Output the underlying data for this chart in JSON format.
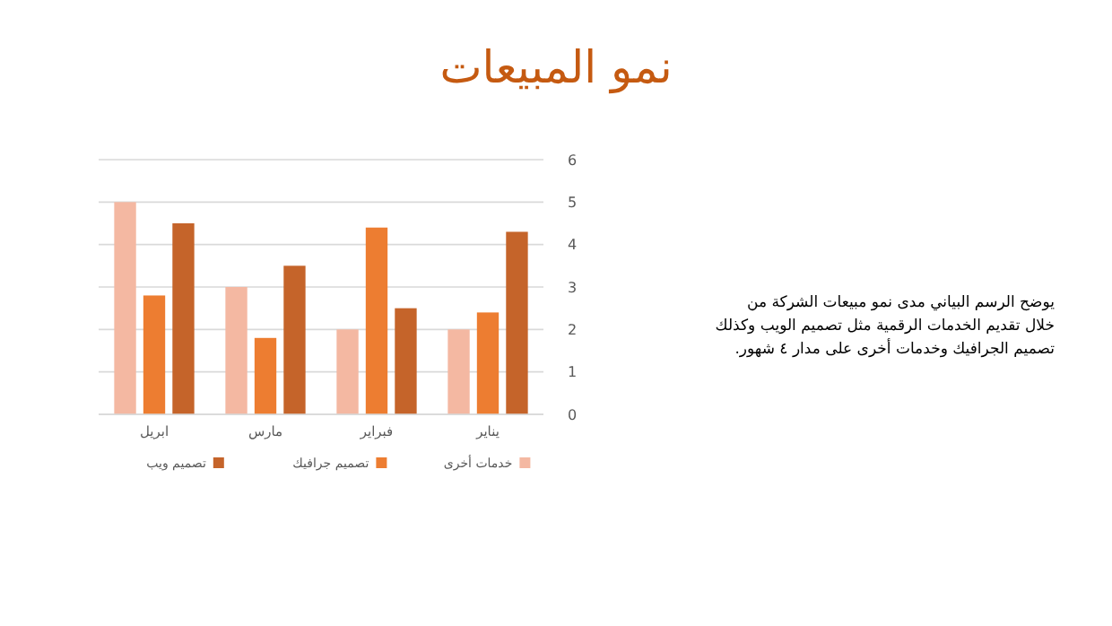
{
  "chart_data": {
    "type": "bar",
    "title": "نمو المبيعات",
    "categories": [
      "ابريل",
      "مارس",
      "فبراير",
      "يناير"
    ],
    "series": [
      {
        "name": "خدمات أخرى",
        "color": "#f4b8a2",
        "values": [
          5,
          3,
          2,
          2
        ]
      },
      {
        "name": "تصميم جرافيك",
        "color": "#ed7d31",
        "values": [
          2.8,
          1.8,
          4.4,
          2.4
        ]
      },
      {
        "name": "تصميم ويب",
        "color": "#c5642a",
        "values": [
          4.5,
          3.5,
          2.5,
          4.3
        ]
      }
    ],
    "ylim": [
      0,
      6
    ],
    "yticks": [
      0,
      1,
      2,
      3,
      4,
      5,
      6
    ],
    "grid": "y",
    "legend": "bottom",
    "annotations": [
      "يوضح الرسم البياني مدى نمو مبيعات الشركة من خلال تقديم الخدمات الرقمية مثل تصميم الويب وكذلك تصميم الجرافيك وخدمات أخرى على مدار ٤ شهور."
    ]
  }
}
